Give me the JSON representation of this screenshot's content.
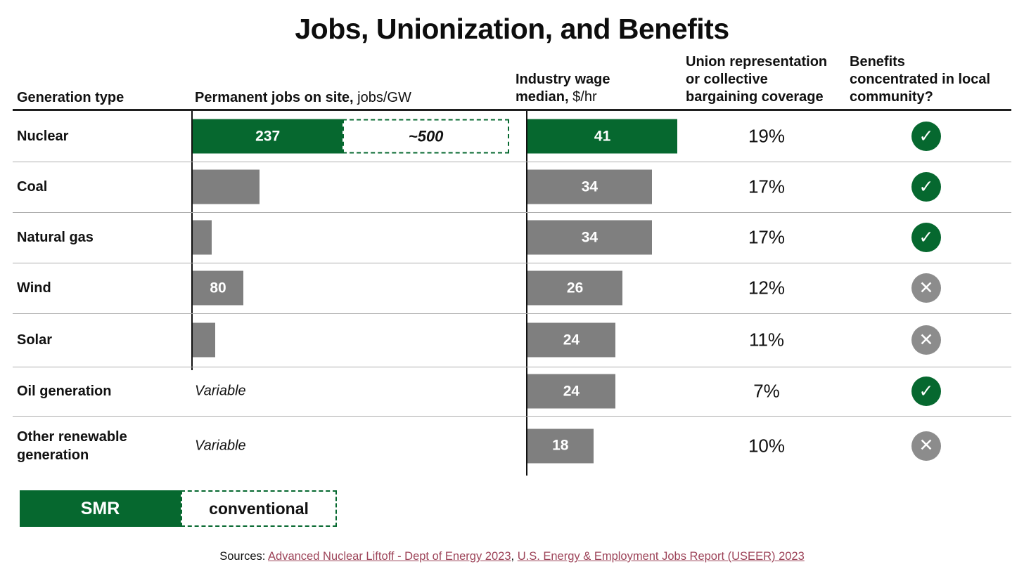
{
  "title": "Jobs, Unionization, and Benefits",
  "header": {
    "col1": "Generation type",
    "col2_bold": "Permanent jobs on site,",
    "col2_normal": " jobs/GW",
    "col3_line1": "Industry wage",
    "col3_line2_bold": "median,",
    "col3_line2_normal": " $/hr",
    "col4_line1": "Union representation",
    "col4_line2": "or collective",
    "col4_line3": "bargaining coverage",
    "col5_line1": "Benefits",
    "col5_line2": "concentrated in local",
    "col5_line3": "community?"
  },
  "rows": [
    {
      "label": "Nuclear",
      "jobs": {
        "kind": "smr_plus_conventional",
        "value": 237,
        "label": "237",
        "conv_extra": 263,
        "conv_label": "~500"
      },
      "wage": {
        "value": 41,
        "label": "41"
      },
      "union": "19%",
      "benefit": "check"
    },
    {
      "label": "Coal",
      "jobs": {
        "kind": "bar",
        "value": 105,
        "label": ""
      },
      "wage": {
        "value": 34,
        "label": "34"
      },
      "union": "17%",
      "benefit": "check"
    },
    {
      "label": "Natural gas",
      "jobs": {
        "kind": "bar",
        "value": 30,
        "label": ""
      },
      "wage": {
        "value": 34,
        "label": "34"
      },
      "union": "17%",
      "benefit": "check"
    },
    {
      "label": "Wind",
      "jobs": {
        "kind": "bar",
        "value": 80,
        "label": "80"
      },
      "wage": {
        "value": 26,
        "label": "26"
      },
      "union": "12%",
      "benefit": "x"
    },
    {
      "label": "Solar",
      "jobs": {
        "kind": "bar",
        "value": 35,
        "label": ""
      },
      "wage": {
        "value": 24,
        "label": "24"
      },
      "union": "11%",
      "benefit": "x"
    },
    {
      "label": "Oil generation",
      "jobs": {
        "kind": "text",
        "text": "Variable"
      },
      "wage": {
        "value": 24,
        "label": "24"
      },
      "union": "7%",
      "benefit": "check"
    },
    {
      "label": "Other renewable generation",
      "jobs": {
        "kind": "text",
        "text": "Variable"
      },
      "wage": {
        "value": 18,
        "label": "18"
      },
      "union": "10%",
      "benefit": "x"
    }
  ],
  "icons": {
    "check": "✓",
    "x": "✕"
  },
  "legend": {
    "smr": "SMR",
    "conventional": "conventional"
  },
  "sources": {
    "prefix": "Sources: ",
    "link1": "Advanced Nuclear Liftoff - Dept of Energy 2023",
    "separator": ", ",
    "link2": "U.S. Energy & Employment Jobs Report (USEER) 2023"
  },
  "colors": {
    "smr_green": "#06682F",
    "bar_gray": "#7F7F7F",
    "x_circle_gray": "#8C8C8C",
    "link_maroon": "#9D4459",
    "divider_gray": "#AEAEAE"
  },
  "chart_data": {
    "type": "table",
    "title": "Jobs, Unionization, and Benefits",
    "columns": [
      "Generation type",
      "Permanent jobs on site, jobs/GW",
      "Industry wage median, $/hr",
      "Union representation or collective bargaining coverage",
      "Benefits concentrated in local community?"
    ],
    "rows": [
      {
        "generation_type": "Nuclear",
        "permanent_jobs_per_gw_smr": 237,
        "permanent_jobs_per_gw_conventional": "~500",
        "industry_wage_median_hr": 41,
        "union_coverage": "19%",
        "benefits_local_community": true
      },
      {
        "generation_type": "Coal",
        "permanent_jobs_per_gw": 105,
        "industry_wage_median_hr": 34,
        "union_coverage": "17%",
        "benefits_local_community": true
      },
      {
        "generation_type": "Natural gas",
        "permanent_jobs_per_gw": 30,
        "industry_wage_median_hr": 34,
        "union_coverage": "17%",
        "benefits_local_community": true
      },
      {
        "generation_type": "Wind",
        "permanent_jobs_per_gw": 80,
        "industry_wage_median_hr": 26,
        "union_coverage": "12%",
        "benefits_local_community": false
      },
      {
        "generation_type": "Solar",
        "permanent_jobs_per_gw": 35,
        "industry_wage_median_hr": 24,
        "union_coverage": "11%",
        "benefits_local_community": false
      },
      {
        "generation_type": "Oil generation",
        "permanent_jobs_per_gw": "Variable",
        "industry_wage_median_hr": 24,
        "union_coverage": "7%",
        "benefits_local_community": true
      },
      {
        "generation_type": "Other renewable generation",
        "permanent_jobs_per_gw": "Variable",
        "industry_wage_median_hr": 18,
        "union_coverage": "10%",
        "benefits_local_community": false
      }
    ],
    "legend": [
      {
        "label": "SMR",
        "style": "solid green"
      },
      {
        "label": "conventional",
        "style": "green dashed outline"
      }
    ],
    "notes": "Jobs bars for Coal, Natural gas and Solar are unlabeled; values estimated from bar lengths. Scale: ~0.9 px per job/GW, ~5.2 px per $/hr."
  }
}
